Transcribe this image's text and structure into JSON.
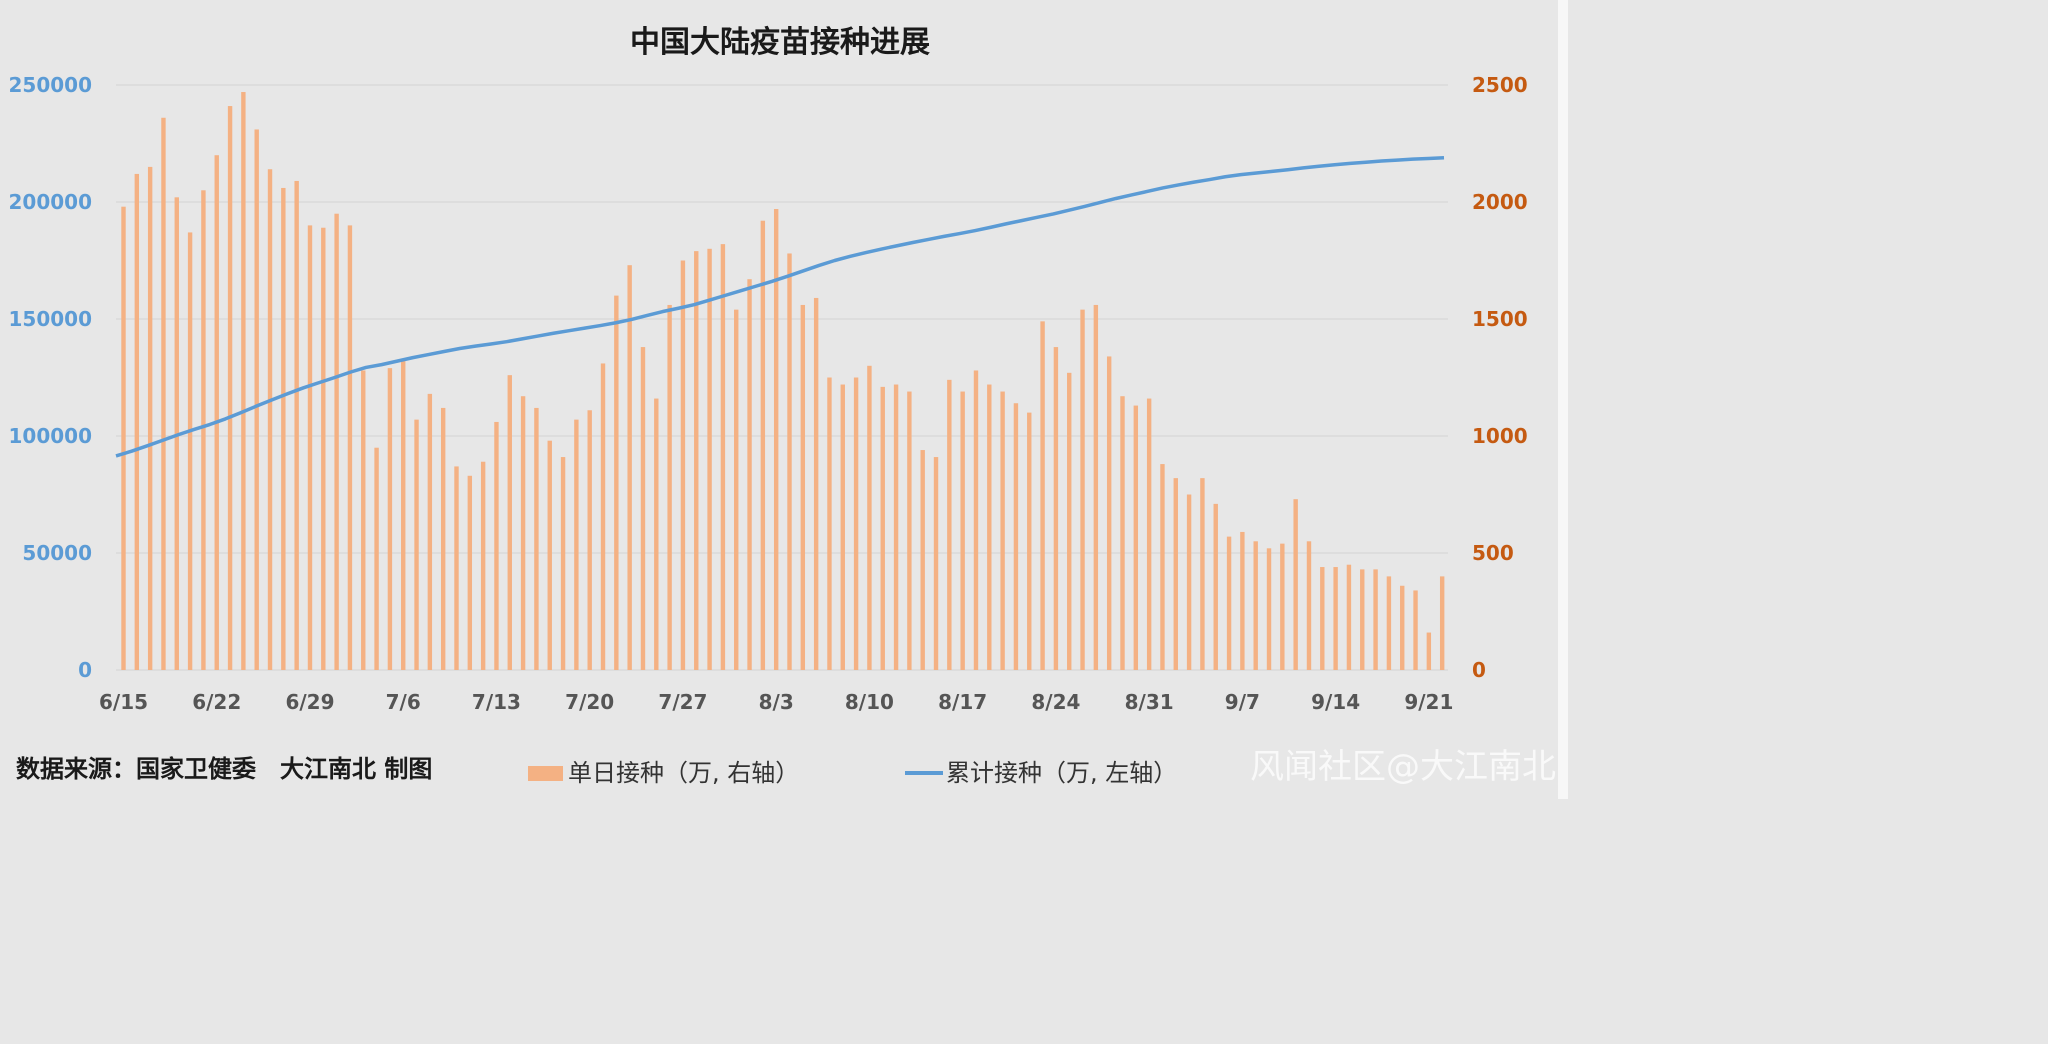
{
  "chart_data": {
    "type": "bar+line",
    "title": "中国大陆疫苗接种进展",
    "colors": {
      "bar": "#f4b183",
      "line": "#5b9bd5",
      "left_axis": "#5b9bd5",
      "right_axis": "#c55a11"
    },
    "y_left": {
      "lim": [
        0,
        250000
      ],
      "ticks": [
        "0",
        "50000",
        "100000",
        "150000",
        "200000",
        "250000"
      ]
    },
    "y_right": {
      "lim": [
        0,
        2500
      ],
      "ticks": [
        "0",
        "500",
        "1000",
        "1500",
        "2000",
        "2500"
      ]
    },
    "x_ticks": [
      "6/15",
      "6/22",
      "6/29",
      "7/6",
      "7/13",
      "7/20",
      "7/27",
      "8/3",
      "8/10",
      "8/17",
      "8/24",
      "8/31",
      "9/7",
      "9/14",
      "9/21"
    ],
    "grid": true,
    "legend_position": "bottom",
    "series": [
      {
        "name": "单日接种（万, 右轴）",
        "kind": "bar",
        "axis": "right",
        "start_date": "6/15",
        "values": [
          1980,
          2120,
          2150,
          2360,
          2020,
          1870,
          2050,
          2200,
          2410,
          2470,
          2310,
          2140,
          2060,
          2090,
          1900,
          1890,
          1950,
          1900,
          1280,
          950,
          1290,
          1320,
          1070,
          1180,
          1120,
          870,
          830,
          890,
          1060,
          1260,
          1170,
          1120,
          980,
          910,
          1070,
          1110,
          1310,
          1600,
          1730,
          1380,
          1160,
          1560,
          1750,
          1790,
          1800,
          1820,
          1540,
          1670,
          1920,
          1970,
          1780,
          1560,
          1590,
          1250,
          1220,
          1250,
          1300,
          1210,
          1220,
          1190,
          940,
          910,
          1240,
          1190,
          1280,
          1220,
          1190,
          1140,
          1100,
          1490,
          1380,
          1270,
          1540,
          1560,
          1340,
          1170,
          1130,
          1160,
          880,
          820,
          750,
          820,
          710,
          570,
          590,
          550,
          520,
          540,
          730,
          550,
          440,
          440,
          450,
          430,
          430,
          400,
          360,
          340,
          160,
          400
        ]
      },
      {
        "name": "累计接种（万, 左轴）",
        "kind": "line",
        "axis": "left",
        "start_date": "6/15",
        "values": [
          91500,
          93500,
          95800,
          98200,
          100600,
          102800,
          104900,
          107300,
          110000,
          112800,
          115500,
          118100,
          120600,
          122800,
          125000,
          127300,
          129300,
          130500,
          132000,
          133500,
          134800,
          136100,
          137400,
          138400,
          139300,
          140300,
          141500,
          142700,
          143900,
          145000,
          146100,
          147200,
          148400,
          149800,
          151500,
          153200,
          154600,
          156100,
          158100,
          160100,
          162100,
          164100,
          166100,
          168300,
          170600,
          172900,
          175000,
          176800,
          178400,
          179900,
          181300,
          182700,
          184000,
          185300,
          186500,
          187800,
          189200,
          190700,
          192100,
          193500,
          194900,
          196500,
          198100,
          199800,
          201500,
          203000,
          204500,
          206000,
          207300,
          208500,
          209600,
          210800,
          211700,
          212400,
          213100,
          213800,
          214600,
          215300,
          215900,
          216500,
          217000,
          217500,
          217900,
          218300,
          218600,
          218900
        ]
      }
    ],
    "footer_source": "数据来源：国家卫健委　大江南北 制图",
    "watermark": "风闻社区@大江南北"
  }
}
